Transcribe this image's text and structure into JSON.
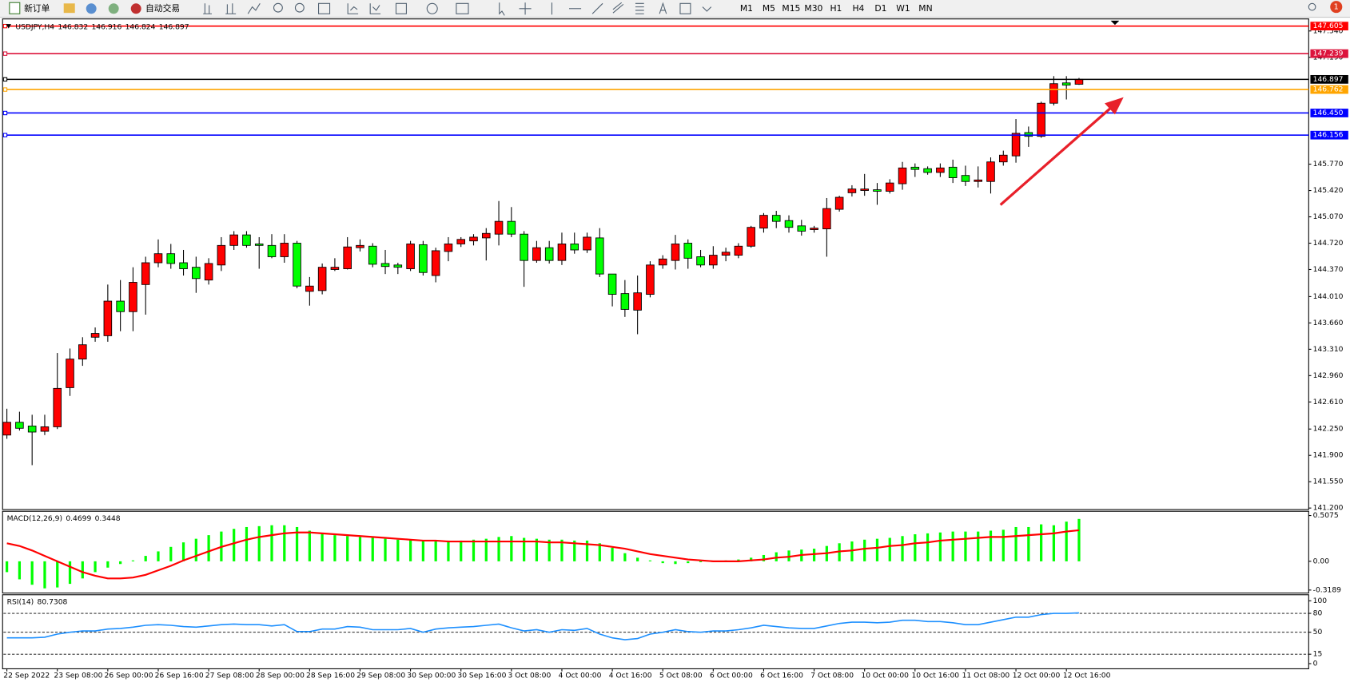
{
  "toolbar": {
    "new_order": "新订单",
    "auto_trading": "自动交易",
    "timeframes": [
      "M1",
      "M5",
      "M15",
      "M30",
      "H1",
      "H4",
      "D1",
      "W1",
      "MN"
    ],
    "notifications": 1
  },
  "chart_data": [
    {
      "type": "candlestick",
      "title": "USDJPY,H4",
      "up_color": "#ff0000",
      "down_color": "#00ff00",
      "ylim": [
        141.18,
        147.7
      ],
      "yticks": [
        {
          "value": 141.2,
          "label": "141.200"
        },
        {
          "value": 141.55,
          "label": "141.550"
        },
        {
          "value": 141.9,
          "label": "141.900"
        },
        {
          "value": 142.25,
          "label": "142.250"
        },
        {
          "value": 142.61,
          "label": "142.610"
        },
        {
          "value": 142.96,
          "label": "142.960"
        },
        {
          "value": 143.31,
          "label": "143.310"
        },
        {
          "value": 143.66,
          "label": "143.660"
        },
        {
          "value": 144.01,
          "label": "144.010"
        },
        {
          "value": 144.37,
          "label": "144.370"
        },
        {
          "value": 144.72,
          "label": "144.720"
        },
        {
          "value": 145.07,
          "label": "145.070"
        },
        {
          "value": 145.42,
          "label": "145.420"
        },
        {
          "value": 145.77,
          "label": "145.770"
        },
        {
          "value": 147.19,
          "label": "147.190"
        },
        {
          "value": 147.54,
          "label": "147.540"
        }
      ],
      "levels": [
        {
          "value": 147.605,
          "color": "#ff0000"
        },
        {
          "value": 147.239,
          "color": "#dc143c"
        },
        {
          "value": 146.897,
          "color": "#000000"
        },
        {
          "value": 146.762,
          "color": "#ffa500"
        },
        {
          "value": 146.45,
          "label": "146.450",
          "color": "#0000ff"
        },
        {
          "value": 146.156,
          "color": "#0000ff"
        }
      ],
      "categories": [
        "22 Sep 2022",
        null,
        null,
        null,
        "23 Sep 08:00",
        null,
        null,
        null,
        "26 Sep 00:00",
        null,
        null,
        null,
        "26 Sep 16:00",
        null,
        null,
        null,
        "27 Sep 08:00",
        null,
        null,
        null,
        "28 Sep 00:00",
        null,
        null,
        null,
        "28 Sep 16:00",
        null,
        null,
        null,
        "29 Sep 08:00",
        null,
        null,
        null,
        "30 Sep 00:00",
        null,
        null,
        null,
        "30 Sep 16:00",
        null,
        null,
        null,
        "3 Oct 08:00",
        null,
        null,
        null,
        "4 Oct 00:00",
        null,
        null,
        null,
        "4 Oct 16:00",
        null,
        null,
        null,
        "5 Oct 08:00",
        null,
        null,
        null,
        "6 Oct 00:00",
        null,
        null,
        null,
        "6 Oct 16:00",
        null,
        null,
        null,
        "7 Oct 08:00",
        null,
        null,
        null,
        "10 Oct 00:00",
        null,
        null,
        null,
        "10 Oct 16:00",
        null,
        null,
        null,
        "11 Oct 08:00",
        null,
        null,
        null,
        "12 Oct 00:00",
        null,
        null,
        null,
        "12 Oct 16:00",
        null
      ],
      "ohlc": [
        [
          142.17,
          142.52,
          142.12,
          142.34
        ],
        [
          142.34,
          142.48,
          142.23,
          142.26
        ],
        [
          142.29,
          142.44,
          141.77,
          142.21
        ],
        [
          142.22,
          142.44,
          142.17,
          142.28
        ],
        [
          142.28,
          143.26,
          142.25,
          142.79
        ],
        [
          142.8,
          143.32,
          142.69,
          143.18
        ],
        [
          143.18,
          143.47,
          143.09,
          143.37
        ],
        [
          143.47,
          143.6,
          143.41,
          143.52
        ],
        [
          143.49,
          144.17,
          143.41,
          143.95
        ],
        [
          143.95,
          144.23,
          143.55,
          143.81
        ],
        [
          143.81,
          144.4,
          143.55,
          144.2
        ],
        [
          144.17,
          144.54,
          143.77,
          144.46
        ],
        [
          144.46,
          144.77,
          144.4,
          144.58
        ],
        [
          144.58,
          144.71,
          144.38,
          144.45
        ],
        [
          144.46,
          144.63,
          144.29,
          144.38
        ],
        [
          144.4,
          144.54,
          144.06,
          144.25
        ],
        [
          144.23,
          144.52,
          144.17,
          144.45
        ],
        [
          144.43,
          144.8,
          144.35,
          144.69
        ],
        [
          144.69,
          144.88,
          144.63,
          144.83
        ],
        [
          144.83,
          144.88,
          144.66,
          144.69
        ],
        [
          144.71,
          144.8,
          144.38,
          144.69
        ],
        [
          144.69,
          144.84,
          144.52,
          144.54
        ],
        [
          144.54,
          144.84,
          144.46,
          144.72
        ],
        [
          144.72,
          144.75,
          144.12,
          144.15
        ],
        [
          144.08,
          144.27,
          143.89,
          144.15
        ],
        [
          144.09,
          144.45,
          144.04,
          144.4
        ],
        [
          144.37,
          144.52,
          144.35,
          144.4
        ],
        [
          144.38,
          144.8,
          144.37,
          144.67
        ],
        [
          144.66,
          144.77,
          144.61,
          144.69
        ],
        [
          144.68,
          144.72,
          144.4,
          144.44
        ],
        [
          144.45,
          144.63,
          144.31,
          144.41
        ],
        [
          144.43,
          144.46,
          144.31,
          144.4
        ],
        [
          144.38,
          144.75,
          144.35,
          144.71
        ],
        [
          144.7,
          144.75,
          144.29,
          144.33
        ],
        [
          144.29,
          144.66,
          144.2,
          144.62
        ],
        [
          144.61,
          144.8,
          144.48,
          144.71
        ],
        [
          144.71,
          144.8,
          144.67,
          144.77
        ],
        [
          144.75,
          144.84,
          144.69,
          144.8
        ],
        [
          144.79,
          144.92,
          144.49,
          144.85
        ],
        [
          144.84,
          145.28,
          144.69,
          145.01
        ],
        [
          145.01,
          145.2,
          144.8,
          144.84
        ],
        [
          144.84,
          144.88,
          144.14,
          144.49
        ],
        [
          144.49,
          144.75,
          144.46,
          144.66
        ],
        [
          144.66,
          144.75,
          144.45,
          144.49
        ],
        [
          144.49,
          144.86,
          144.43,
          144.71
        ],
        [
          144.71,
          144.86,
          144.58,
          144.63
        ],
        [
          144.63,
          144.86,
          144.59,
          144.8
        ],
        [
          144.79,
          144.92,
          144.27,
          144.31
        ],
        [
          144.31,
          144.31,
          143.88,
          144.04
        ],
        [
          144.05,
          144.23,
          143.74,
          143.84
        ],
        [
          143.83,
          144.29,
          143.51,
          144.06
        ],
        [
          144.04,
          144.48,
          144.0,
          144.43
        ],
        [
          144.43,
          144.56,
          144.38,
          144.51
        ],
        [
          144.49,
          144.83,
          144.37,
          144.71
        ],
        [
          144.72,
          144.77,
          144.38,
          144.52
        ],
        [
          144.54,
          144.63,
          144.4,
          144.43
        ],
        [
          144.43,
          144.68,
          144.38,
          144.56
        ],
        [
          144.56,
          144.66,
          144.48,
          144.6
        ],
        [
          144.56,
          144.72,
          144.52,
          144.68
        ],
        [
          144.68,
          144.95,
          144.66,
          144.93
        ],
        [
          144.92,
          145.12,
          144.86,
          145.09
        ],
        [
          145.09,
          145.15,
          144.92,
          145.01
        ],
        [
          145.02,
          145.09,
          144.86,
          144.93
        ],
        [
          144.95,
          145.03,
          144.82,
          144.88
        ],
        [
          144.9,
          144.95,
          144.86,
          144.92
        ],
        [
          144.91,
          145.32,
          144.54,
          145.18
        ],
        [
          145.17,
          145.35,
          145.14,
          145.33
        ],
        [
          145.39,
          145.49,
          145.34,
          145.44
        ],
        [
          145.42,
          145.64,
          145.35,
          145.44
        ],
        [
          145.43,
          145.52,
          145.23,
          145.41
        ],
        [
          145.41,
          145.57,
          145.38,
          145.52
        ],
        [
          145.51,
          145.8,
          145.43,
          145.72
        ],
        [
          145.73,
          145.78,
          145.6,
          145.7
        ],
        [
          145.71,
          145.74,
          145.63,
          145.66
        ],
        [
          145.66,
          145.78,
          145.6,
          145.72
        ],
        [
          145.73,
          145.83,
          145.52,
          145.59
        ],
        [
          145.62,
          145.75,
          145.48,
          145.54
        ],
        [
          145.54,
          145.74,
          145.46,
          145.56
        ],
        [
          145.54,
          145.86,
          145.38,
          145.8
        ],
        [
          145.8,
          145.95,
          145.75,
          145.89
        ],
        [
          145.88,
          146.37,
          145.79,
          146.18
        ],
        [
          146.19,
          146.27,
          146.0,
          146.14
        ],
        [
          146.14,
          146.6,
          146.12,
          146.58
        ],
        [
          146.58,
          146.94,
          146.55,
          146.84
        ],
        [
          146.85,
          146.94,
          146.63,
          146.82
        ],
        [
          146.832,
          146.916,
          146.824,
          146.897
        ]
      ]
    },
    {
      "type": "macd",
      "title": "MACD(12,26,9)",
      "ylim": [
        -0.352,
        0.555
      ],
      "yticks": [
        0.5075,
        {
          "value": 0,
          "label": "0.00"
        },
        -0.3189
      ],
      "series": [
        {
          "color": "#00ff00",
          "values": [
            -0.12,
            -0.2,
            -0.26,
            -0.3,
            -0.29,
            -0.25,
            -0.19,
            -0.12,
            -0.07,
            -0.03,
            0.01,
            0.06,
            0.11,
            0.16,
            0.21,
            0.25,
            0.29,
            0.33,
            0.36,
            0.38,
            0.39,
            0.4,
            0.4,
            0.38,
            0.34,
            0.31,
            0.29,
            0.28,
            0.27,
            0.26,
            0.25,
            0.24,
            0.24,
            0.23,
            0.23,
            0.23,
            0.23,
            0.24,
            0.25,
            0.27,
            0.28,
            0.26,
            0.25,
            0.24,
            0.24,
            0.23,
            0.23,
            0.2,
            0.15,
            0.09,
            0.04,
            0.01,
            -0.02,
            -0.03,
            -0.02,
            -0.01,
            0.0,
            0.01,
            0.02,
            0.04,
            0.07,
            0.1,
            0.12,
            0.13,
            0.14,
            0.17,
            0.2,
            0.22,
            0.24,
            0.25,
            0.26,
            0.28,
            0.3,
            0.31,
            0.32,
            0.33,
            0.33,
            0.33,
            0.34,
            0.35,
            0.38,
            0.38,
            0.41,
            0.4,
            0.44,
            0.4699
          ]
        },
        {
          "color": "#ff0000",
          "values": [
            0.2,
            0.17,
            0.12,
            0.06,
            0.0,
            -0.06,
            -0.12,
            -0.16,
            -0.19,
            -0.19,
            -0.18,
            -0.15,
            -0.1,
            -0.05,
            0.01,
            0.06,
            0.11,
            0.16,
            0.2,
            0.24,
            0.27,
            0.29,
            0.31,
            0.32,
            0.32,
            0.31,
            0.3,
            0.29,
            0.28,
            0.27,
            0.26,
            0.25,
            0.24,
            0.23,
            0.23,
            0.22,
            0.22,
            0.22,
            0.22,
            0.22,
            0.22,
            0.22,
            0.22,
            0.21,
            0.21,
            0.2,
            0.19,
            0.18,
            0.16,
            0.14,
            0.11,
            0.08,
            0.06,
            0.04,
            0.02,
            0.01,
            0.0,
            0.0,
            0.0,
            0.01,
            0.02,
            0.04,
            0.05,
            0.07,
            0.08,
            0.09,
            0.11,
            0.12,
            0.14,
            0.15,
            0.17,
            0.18,
            0.2,
            0.21,
            0.23,
            0.24,
            0.25,
            0.26,
            0.27,
            0.27,
            0.28,
            0.29,
            0.3,
            0.31,
            0.33,
            0.3448
          ]
        }
      ]
    },
    {
      "type": "rsi",
      "title": "RSI(14)",
      "color": "#1e90ff",
      "ylim": [
        -8.2,
        109.6
      ],
      "yticks": [
        100,
        80,
        50,
        15,
        0
      ],
      "levels": [
        80,
        50,
        15
      ],
      "values": [
        41,
        41,
        41,
        42,
        47,
        50,
        52,
        52,
        55,
        56,
        58,
        61,
        62,
        61,
        59,
        58,
        60,
        62,
        63,
        62,
        62,
        60,
        62,
        51,
        51,
        55,
        55,
        59,
        58,
        54,
        54,
        54,
        56,
        50,
        55,
        57,
        58,
        59,
        61,
        63,
        57,
        52,
        54,
        50,
        54,
        53,
        56,
        47,
        41,
        38,
        40,
        47,
        50,
        54,
        51,
        50,
        52,
        52,
        54,
        57,
        61,
        59,
        57,
        56,
        56,
        60,
        64,
        66,
        66,
        65,
        66,
        69,
        69,
        67,
        67,
        65,
        62,
        62,
        66,
        70,
        74,
        74,
        78,
        80,
        80,
        80.7308
      ]
    }
  ]
}
